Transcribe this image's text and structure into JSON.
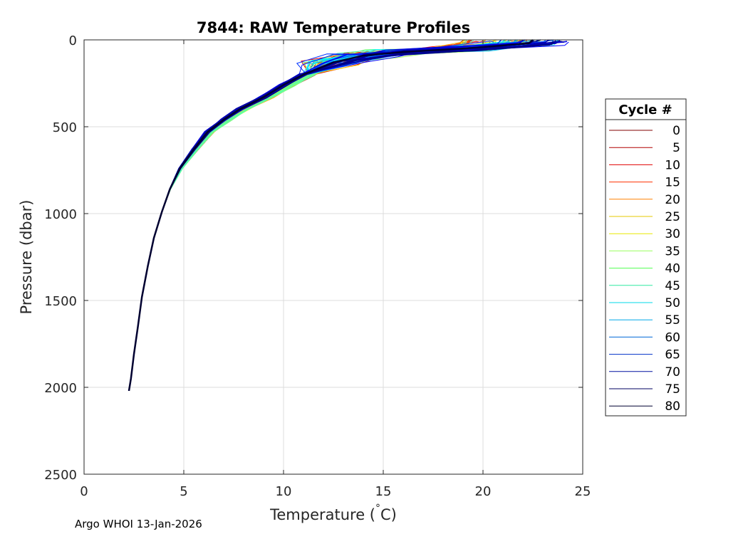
{
  "chart_data": {
    "type": "line",
    "title": "7844: RAW Temperature Profiles",
    "xlabel_text": "Temperature (",
    "xlabel_degree": "°",
    "xlabel_unit": "C)",
    "ylabel": "Pressure (dbar)",
    "xlim": [
      0,
      25
    ],
    "ylim": [
      0,
      2500
    ],
    "y_reversed": true,
    "grid": true,
    "xticks": [
      0,
      5,
      10,
      15,
      20,
      25
    ],
    "xtick_labels": [
      "0",
      "5",
      "10",
      "15",
      "20",
      "25"
    ],
    "yticks": [
      0,
      500,
      1000,
      1500,
      2000,
      2500
    ],
    "ytick_labels": [
      "0",
      "500",
      "1000",
      "1500",
      "2000",
      "2500"
    ],
    "legend": {
      "title": "Cycle #",
      "placement": "outside-right",
      "entries": [
        {
          "label": "0",
          "color": "#800000"
        },
        {
          "label": "5",
          "color": "#b00000"
        },
        {
          "label": "10",
          "color": "#e00000"
        },
        {
          "label": "15",
          "color": "#ff3000"
        },
        {
          "label": "20",
          "color": "#ff8000"
        },
        {
          "label": "25",
          "color": "#e6c800"
        },
        {
          "label": "30",
          "color": "#e8e800"
        },
        {
          "label": "35",
          "color": "#9cff60"
        },
        {
          "label": "40",
          "color": "#50ff50"
        },
        {
          "label": "45",
          "color": "#30e8a0"
        },
        {
          "label": "50",
          "color": "#00d8e8"
        },
        {
          "label": "55",
          "color": "#00a8e8"
        },
        {
          "label": "60",
          "color": "#0068d8"
        },
        {
          "label": "65",
          "color": "#0030c8"
        },
        {
          "label": "70",
          "color": "#0010a0"
        },
        {
          "label": "75",
          "color": "#000060"
        },
        {
          "label": "80",
          "color": "#000030"
        }
      ]
    },
    "base_profile": {
      "temperature": [
        22.5,
        22.3,
        19.0,
        16.0,
        14.0,
        12.5,
        11.0,
        10.0,
        9.0,
        7.8,
        7.0,
        6.2,
        5.5,
        4.8,
        4.3,
        3.9,
        3.5,
        3.2,
        2.9,
        2.7,
        2.5,
        2.35,
        2.25
      ],
      "pressure": [
        0,
        20,
        50,
        70,
        90,
        130,
        200,
        260,
        330,
        400,
        460,
        530,
        630,
        740,
        860,
        990,
        1140,
        1300,
        1480,
        1650,
        1810,
        1950,
        2020
      ]
    },
    "series_note": "Profiles for cycles 0-80, colored by cycle number (jet colormap); warm surface mixed layer ~17-24 °C, converging to ~2.2 °C near 2020 dbar."
  },
  "footer": {
    "text": "Argo WHOI 13-Jan-2026"
  }
}
